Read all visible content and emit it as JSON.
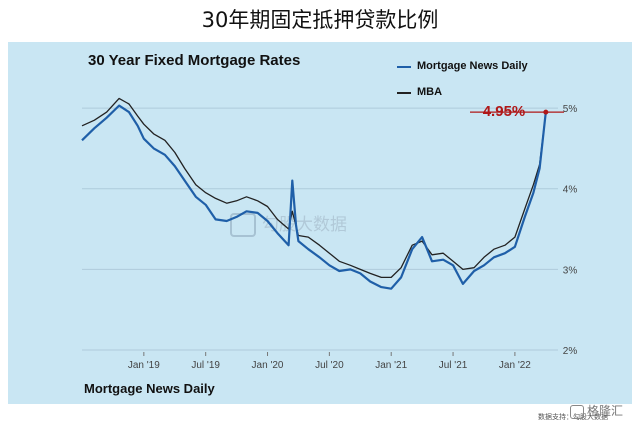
{
  "header": {
    "title": "30年期固定抵押贷款比例"
  },
  "chart_data": {
    "type": "line",
    "title": "30 Year Fixed Mortgage Rates",
    "source": "Mortgage News Daily",
    "x_tick_labels": [
      "Jan '19",
      "Jul '19",
      "Jan '20",
      "Jul '20",
      "Jan '21",
      "Jul '21",
      "Jan '22"
    ],
    "y_tick_labels": [
      "2%",
      "3%",
      "4%",
      "5%"
    ],
    "ylim": [
      2,
      5.1
    ],
    "xlim": [
      2018.5,
      2022.3
    ],
    "grid": true,
    "legend_position": "top-right",
    "annotation": {
      "label": "4.95%",
      "value": 4.95
    },
    "series": [
      {
        "name": "Mortgage News Daily",
        "color": "#1f5fa8",
        "points": [
          [
            2018.5,
            4.6
          ],
          [
            2018.6,
            4.75
          ],
          [
            2018.7,
            4.88
          ],
          [
            2018.8,
            5.03
          ],
          [
            2018.88,
            4.95
          ],
          [
            2018.95,
            4.78
          ],
          [
            2019.0,
            4.62
          ],
          [
            2019.08,
            4.5
          ],
          [
            2019.17,
            4.42
          ],
          [
            2019.25,
            4.28
          ],
          [
            2019.33,
            4.1
          ],
          [
            2019.42,
            3.9
          ],
          [
            2019.5,
            3.8
          ],
          [
            2019.58,
            3.62
          ],
          [
            2019.67,
            3.6
          ],
          [
            2019.75,
            3.65
          ],
          [
            2019.83,
            3.72
          ],
          [
            2019.92,
            3.7
          ],
          [
            2020.0,
            3.6
          ],
          [
            2020.08,
            3.45
          ],
          [
            2020.17,
            3.3
          ],
          [
            2020.2,
            4.1
          ],
          [
            2020.23,
            3.55
          ],
          [
            2020.25,
            3.35
          ],
          [
            2020.33,
            3.25
          ],
          [
            2020.42,
            3.15
          ],
          [
            2020.5,
            3.05
          ],
          [
            2020.58,
            2.98
          ],
          [
            2020.67,
            3.0
          ],
          [
            2020.75,
            2.95
          ],
          [
            2020.83,
            2.85
          ],
          [
            2020.92,
            2.78
          ],
          [
            2021.0,
            2.76
          ],
          [
            2021.08,
            2.9
          ],
          [
            2021.17,
            3.25
          ],
          [
            2021.25,
            3.4
          ],
          [
            2021.33,
            3.1
          ],
          [
            2021.42,
            3.12
          ],
          [
            2021.5,
            3.05
          ],
          [
            2021.58,
            2.82
          ],
          [
            2021.67,
            2.98
          ],
          [
            2021.75,
            3.05
          ],
          [
            2021.83,
            3.15
          ],
          [
            2021.92,
            3.2
          ],
          [
            2022.0,
            3.28
          ],
          [
            2022.08,
            3.65
          ],
          [
            2022.15,
            3.95
          ],
          [
            2022.2,
            4.25
          ],
          [
            2022.25,
            4.95
          ]
        ]
      },
      {
        "name": "MBA",
        "color": "#222222",
        "points": [
          [
            2018.5,
            4.78
          ],
          [
            2018.6,
            4.85
          ],
          [
            2018.7,
            4.95
          ],
          [
            2018.8,
            5.12
          ],
          [
            2018.88,
            5.05
          ],
          [
            2018.95,
            4.9
          ],
          [
            2019.0,
            4.8
          ],
          [
            2019.08,
            4.68
          ],
          [
            2019.17,
            4.6
          ],
          [
            2019.25,
            4.45
          ],
          [
            2019.33,
            4.25
          ],
          [
            2019.42,
            4.05
          ],
          [
            2019.5,
            3.95
          ],
          [
            2019.58,
            3.88
          ],
          [
            2019.67,
            3.82
          ],
          [
            2019.75,
            3.85
          ],
          [
            2019.83,
            3.9
          ],
          [
            2019.92,
            3.85
          ],
          [
            2020.0,
            3.78
          ],
          [
            2020.08,
            3.62
          ],
          [
            2020.17,
            3.5
          ],
          [
            2020.2,
            3.72
          ],
          [
            2020.25,
            3.42
          ],
          [
            2020.33,
            3.4
          ],
          [
            2020.42,
            3.3
          ],
          [
            2020.5,
            3.2
          ],
          [
            2020.58,
            3.1
          ],
          [
            2020.67,
            3.05
          ],
          [
            2020.75,
            3.0
          ],
          [
            2020.83,
            2.95
          ],
          [
            2020.92,
            2.9
          ],
          [
            2021.0,
            2.9
          ],
          [
            2021.08,
            3.02
          ],
          [
            2021.17,
            3.3
          ],
          [
            2021.25,
            3.35
          ],
          [
            2021.33,
            3.18
          ],
          [
            2021.42,
            3.2
          ],
          [
            2021.5,
            3.1
          ],
          [
            2021.58,
            3.0
          ],
          [
            2021.67,
            3.02
          ],
          [
            2021.75,
            3.15
          ],
          [
            2021.83,
            3.25
          ],
          [
            2021.92,
            3.3
          ],
          [
            2022.0,
            3.4
          ],
          [
            2022.08,
            3.75
          ],
          [
            2022.15,
            4.05
          ],
          [
            2022.2,
            4.3
          ],
          [
            2022.25,
            4.95
          ]
        ]
      }
    ]
  },
  "watermark": {
    "text": "勾股大数据"
  },
  "footer": {
    "credit": "数据支持：勾股大数据",
    "logo_text": "格隆汇"
  }
}
